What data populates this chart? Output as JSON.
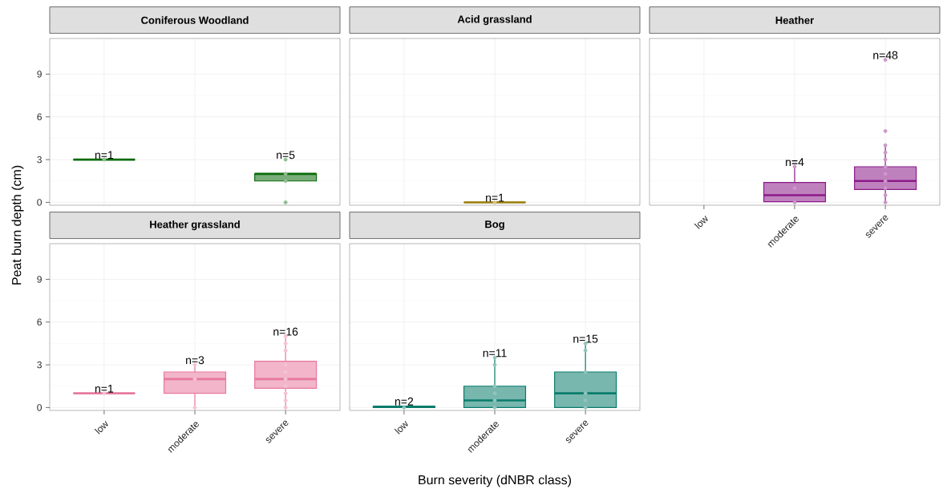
{
  "chart_data": [
    {
      "type": "box",
      "title": "Coniferous Woodland",
      "ylabel": "Peat burn depth (cm)",
      "categories": [
        "low",
        "moderate",
        "severe"
      ],
      "ylim": [
        -0.2,
        11.5
      ],
      "yticks": [
        0,
        3,
        6,
        9
      ],
      "grid": true,
      "tick_labels": "y",
      "series": [
        {
          "type": "box",
          "color": "#0b6a0b",
          "boxes": [
            {
              "low": 3,
              "q1": 3,
              "median": 3,
              "q3": 3,
              "high": 3
            },
            null,
            {
              "low": 1.5,
              "q1": 1.5,
              "median": 2,
              "q3": 2,
              "high": 2
            }
          ]
        },
        {
          "type": "scatter",
          "color": "#91bc91",
          "marker": "circle",
          "x": [
            "low",
            "severe",
            "severe",
            "severe",
            "severe"
          ],
          "values": [
            3,
            3,
            2,
            1.5,
            0
          ]
        }
      ],
      "annotations": [
        {
          "text": "n=1",
          "x": "low",
          "y": 3
        },
        {
          "text": "n=5",
          "x": "severe",
          "y": 3
        }
      ]
    },
    {
      "type": "box",
      "title": "Acid grassland",
      "categories": [
        "low",
        "moderate",
        "severe"
      ],
      "ylim": [
        -0.2,
        11.5
      ],
      "yticks": [
        0,
        3,
        6,
        9
      ],
      "grid": true,
      "tick_labels": false,
      "series": [
        {
          "type": "box",
          "color": "#9a7d0a",
          "boxes": [
            null,
            {
              "low": 0,
              "q1": 0,
              "median": 0,
              "q3": 0,
              "high": 0
            },
            null
          ]
        },
        {
          "type": "scatter",
          "color": "#d2c591",
          "marker": "circle",
          "x": [
            "moderate"
          ],
          "values": [
            0
          ]
        }
      ],
      "annotations": [
        {
          "text": "n=1",
          "x": "moderate",
          "y": 0
        }
      ]
    },
    {
      "type": "box",
      "title": "Heather",
      "categories": [
        "low",
        "moderate",
        "severe"
      ],
      "ylim": [
        -0.2,
        11.5
      ],
      "yticks": [
        0,
        3,
        6,
        9
      ],
      "grid": true,
      "tick_labels": "x",
      "series": [
        {
          "type": "box",
          "color": "#8b1a89",
          "boxes": [
            null,
            {
              "low": 0,
              "q1": 0.05,
              "median": 0.5,
              "q3": 1.4,
              "high": 2.5
            },
            {
              "low": 0,
              "q1": 0.9,
              "median": 1.5,
              "q3": 2.5,
              "high": 4
            }
          ]
        },
        {
          "type": "scatter",
          "color": "#cb98ca",
          "marker": "circle",
          "x": [
            "moderate",
            "moderate",
            "moderate",
            "severe",
            "severe",
            "severe",
            "severe",
            "severe",
            "severe",
            "severe",
            "severe",
            "severe",
            "severe",
            "severe"
          ],
          "values": [
            2.5,
            1,
            0,
            10,
            5,
            4,
            3.5,
            3,
            2.5,
            2,
            1.5,
            1,
            0.5,
            0
          ]
        }
      ],
      "annotations": [
        {
          "text": "n=4",
          "x": "moderate",
          "y": 2.5
        },
        {
          "text": "n=48",
          "x": "severe",
          "y": 10
        }
      ]
    },
    {
      "type": "box",
      "title": "Heather grassland",
      "categories": [
        "low",
        "moderate",
        "severe"
      ],
      "ylim": [
        -0.2,
        11.5
      ],
      "yticks": [
        0,
        3,
        6,
        9
      ],
      "grid": true,
      "series": [
        {
          "type": "box",
          "color": "#e7799e",
          "boxes": [
            {
              "low": 1,
              "q1": 1,
              "median": 1,
              "q3": 1,
              "high": 1
            },
            {
              "low": 0,
              "q1": 1,
              "median": 2,
              "q3": 2.5,
              "high": 3
            },
            {
              "low": 0,
              "q1": 1.35,
              "median": 2,
              "q3": 3.25,
              "high": 5
            }
          ]
        },
        {
          "type": "scatter",
          "color": "#f4c3d3",
          "marker": "circle",
          "x": [
            "low",
            "moderate",
            "moderate",
            "moderate",
            "severe",
            "severe",
            "severe",
            "severe",
            "severe",
            "severe",
            "severe",
            "severe",
            "severe",
            "severe"
          ],
          "values": [
            1,
            3,
            2,
            0,
            5,
            4.5,
            4,
            3,
            2.5,
            2,
            1.5,
            1,
            0.5,
            0
          ]
        }
      ],
      "annotations": [
        {
          "text": "n=1",
          "x": "low",
          "y": 1
        },
        {
          "text": "n=3",
          "x": "moderate",
          "y": 3
        },
        {
          "text": "n=16",
          "x": "severe",
          "y": 5
        }
      ]
    },
    {
      "type": "box",
      "title": "Bog",
      "xlabel": "Burn severity (dNBR class)",
      "categories": [
        "low",
        "moderate",
        "severe"
      ],
      "ylim": [
        -0.2,
        11.5
      ],
      "yticks": [
        0,
        3,
        6,
        9
      ],
      "grid": true,
      "tick_labels": "x",
      "series": [
        {
          "type": "box",
          "color": "#0a7c6c",
          "boxes": [
            {
              "low": 0,
              "q1": 0,
              "median": 0.05,
              "q3": 0.1,
              "high": 0.1
            },
            {
              "low": 0,
              "q1": 0,
              "median": 0.5,
              "q3": 1.5,
              "high": 3.5
            },
            {
              "low": 0,
              "q1": 0,
              "median": 1,
              "q3": 2.5,
              "high": 4.5
            }
          ]
        },
        {
          "type": "scatter",
          "color": "#91c4bd",
          "marker": "circle",
          "x": [
            "low",
            "moderate",
            "moderate",
            "moderate",
            "moderate",
            "moderate",
            "moderate",
            "severe",
            "severe",
            "severe",
            "severe",
            "severe",
            "severe"
          ],
          "values": [
            0,
            3.5,
            3,
            1.5,
            1,
            0.5,
            0,
            4.5,
            4,
            2.5,
            1,
            0.5,
            0
          ]
        }
      ],
      "annotations": [
        {
          "text": "n=2",
          "x": "low",
          "y": 0.1
        },
        {
          "text": "n=11",
          "x": "moderate",
          "y": 3.5
        },
        {
          "text": "n=15",
          "x": "severe",
          "y": 4.5
        }
      ]
    }
  ]
}
